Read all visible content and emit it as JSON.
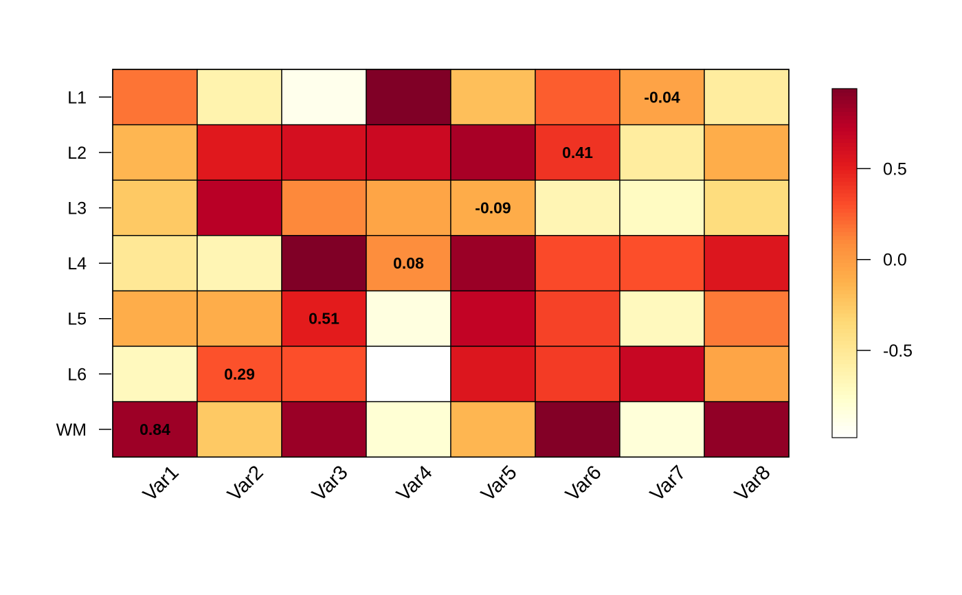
{
  "chart_data": {
    "type": "heatmap",
    "title": "",
    "xlabel": "",
    "ylabel": "",
    "x_categories": [
      "Var1",
      "Var2",
      "Var3",
      "Var4",
      "Var5",
      "Var6",
      "Var7",
      "Var8"
    ],
    "y_categories": [
      "L1",
      "L2",
      "L3",
      "L4",
      "L5",
      "L6",
      "WM"
    ],
    "values": [
      [
        0.17,
        -0.62,
        -0.9,
        0.94,
        -0.2,
        0.25,
        -0.04,
        -0.55
      ],
      [
        -0.15,
        0.53,
        0.6,
        0.65,
        0.8,
        0.41,
        -0.55,
        -0.1
      ],
      [
        -0.25,
        0.74,
        0.1,
        -0.05,
        -0.09,
        -0.65,
        -0.72,
        -0.38
      ],
      [
        -0.5,
        -0.65,
        0.94,
        0.08,
        0.85,
        0.32,
        0.3,
        0.55
      ],
      [
        -0.1,
        -0.1,
        0.51,
        -0.85,
        0.7,
        0.35,
        -0.7,
        0.15
      ],
      [
        -0.7,
        0.29,
        0.3,
        -0.98,
        0.55,
        0.38,
        0.67,
        -0.05
      ],
      [
        0.84,
        -0.25,
        0.85,
        -0.8,
        -0.15,
        0.93,
        -0.82,
        0.88
      ]
    ],
    "annotations": [
      {
        "row": 0,
        "col": 6,
        "text": "-0.04"
      },
      {
        "row": 1,
        "col": 5,
        "text": "0.41"
      },
      {
        "row": 2,
        "col": 4,
        "text": "-0.09"
      },
      {
        "row": 3,
        "col": 3,
        "text": "0.08"
      },
      {
        "row": 4,
        "col": 2,
        "text": "0.51"
      },
      {
        "row": 5,
        "col": 1,
        "text": "0.29"
      },
      {
        "row": 6,
        "col": 0,
        "text": "0.84"
      }
    ],
    "color_range": [
      -0.98,
      0.94
    ],
    "colorscale": [
      "#FFFFFF",
      "#FFFFCC",
      "#FFEDA0",
      "#FED976",
      "#FEB24C",
      "#FD8D3C",
      "#FC4E2A",
      "#E31A1C",
      "#BD0026",
      "#800026"
    ],
    "colorbar": {
      "ticks": [
        0.5,
        0.0,
        -0.5
      ],
      "tick_labels": [
        "0.5",
        "0.0",
        "-0.5"
      ]
    },
    "grid": false,
    "legend": "right"
  }
}
